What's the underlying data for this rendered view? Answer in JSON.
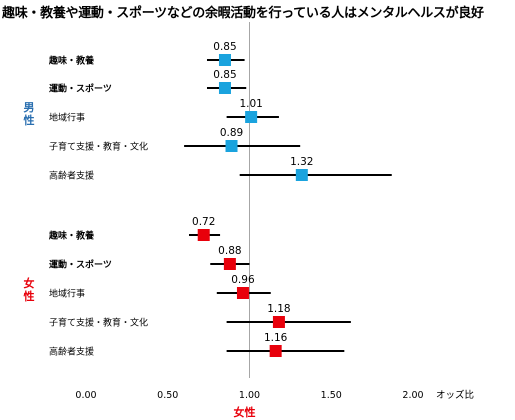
{
  "title": "趣味・教養や運動・スポーツなどの余暇活動を行っている人はメンタルヘルスが良好",
  "colors": {
    "male": "#1aa3de",
    "female": "#e8000b",
    "male_label": "#2a6fb0",
    "female_label": "#e8000b"
  },
  "chart_data": {
    "type": "forest",
    "title": "趣味・教養や運動・スポーツなどの余暇活動を行っている人はメンタルヘルスが良好",
    "xlabel": "オッズ比",
    "xlim": [
      0,
      2.0
    ],
    "xticks": [
      "0.00",
      "0.50",
      "1.00",
      "1.50",
      "2.00"
    ],
    "reference_line": 1.0,
    "groups": [
      {
        "name": "男性",
        "color": "#1aa3de",
        "items": [
          {
            "label": "趣味・教養",
            "bold": true,
            "value": 0.85,
            "value_label": "0.85",
            "ci": [
              0.74,
              0.97
            ]
          },
          {
            "label": "運動・スポーツ",
            "bold": true,
            "value": 0.85,
            "value_label": "0.85",
            "ci": [
              0.74,
              0.98
            ]
          },
          {
            "label": "地域行事",
            "bold": false,
            "value": 1.01,
            "value_label": "1.01",
            "ci": [
              0.86,
              1.18
            ]
          },
          {
            "label": "子育て支援・教育・文化",
            "bold": false,
            "value": 0.89,
            "value_label": "0.89",
            "ci": [
              0.6,
              1.31
            ]
          },
          {
            "label": "高齢者支援",
            "bold": false,
            "value": 1.32,
            "value_label": "1.32",
            "ci": [
              0.94,
              1.87
            ]
          }
        ]
      },
      {
        "name": "女性",
        "color": "#e8000b",
        "items": [
          {
            "label": "趣味・教養",
            "bold": true,
            "value": 0.72,
            "value_label": "0.72",
            "ci": [
              0.63,
              0.82
            ]
          },
          {
            "label": "運動・スポーツ",
            "bold": true,
            "value": 0.88,
            "value_label": "0.88",
            "ci": [
              0.76,
              1.0
            ]
          },
          {
            "label": "地域行事",
            "bold": false,
            "value": 0.96,
            "value_label": "0.96",
            "ci": [
              0.8,
              1.13
            ]
          },
          {
            "label": "子育て支援・教育・文化",
            "bold": false,
            "value": 1.18,
            "value_label": "1.18",
            "ci": [
              0.86,
              1.62
            ]
          },
          {
            "label": "高齢者支援",
            "bold": false,
            "value": 1.16,
            "value_label": "1.16",
            "ci": [
              0.86,
              1.58
            ]
          }
        ]
      }
    ],
    "bottom_label": "女性"
  }
}
